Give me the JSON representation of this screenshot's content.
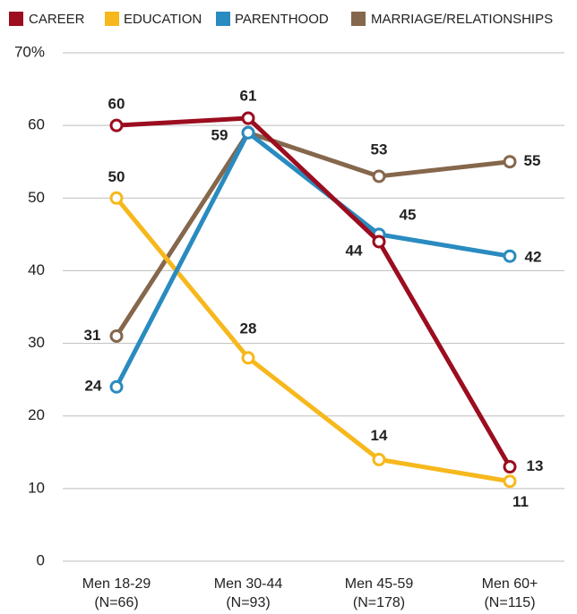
{
  "chart_data": {
    "type": "line",
    "categories": [
      "Men 18-29\n(N=66)",
      "Men 30-44\n(N=93)",
      "Men 45-59\n(N=178)",
      "Men 60+\n(N=115)"
    ],
    "series": [
      {
        "name": "CAREER",
        "color": "#9b0d1f",
        "values": [
          60,
          61,
          44,
          13
        ]
      },
      {
        "name": "EDUCATION",
        "color": "#f6b81c",
        "values": [
          50,
          28,
          14,
          11
        ]
      },
      {
        "name": "PARENTHOOD",
        "color": "#2a8bc0",
        "values": [
          24,
          59,
          45,
          42
        ]
      },
      {
        "name": "MARRIAGE/RELATIONSHIPS",
        "color": "#85674c",
        "values": [
          31,
          59,
          53,
          55
        ],
        "value_labels": [
          "31",
          null,
          "53",
          "55"
        ]
      }
    ],
    "ylim": [
      0,
      70
    ],
    "yticks": [
      0,
      10,
      20,
      30,
      40,
      50,
      60,
      {
        "value": 70,
        "label": "70%"
      }
    ],
    "grid": true,
    "legend": "top"
  }
}
